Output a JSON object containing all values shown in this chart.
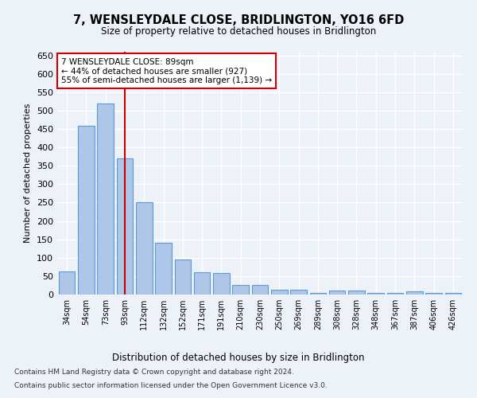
{
  "title": "7, WENSLEYDALE CLOSE, BRIDLINGTON, YO16 6FD",
  "subtitle": "Size of property relative to detached houses in Bridlington",
  "xlabel": "Distribution of detached houses by size in Bridlington",
  "ylabel": "Number of detached properties",
  "categories": [
    "34sqm",
    "54sqm",
    "73sqm",
    "93sqm",
    "112sqm",
    "132sqm",
    "152sqm",
    "171sqm",
    "191sqm",
    "210sqm",
    "230sqm",
    "250sqm",
    "269sqm",
    "289sqm",
    "308sqm",
    "328sqm",
    "348sqm",
    "367sqm",
    "387sqm",
    "406sqm",
    "426sqm"
  ],
  "values": [
    63,
    458,
    520,
    370,
    250,
    140,
    95,
    60,
    58,
    25,
    25,
    13,
    13,
    5,
    10,
    10,
    4,
    5,
    8,
    4,
    4
  ],
  "bar_color": "#aec6e8",
  "bar_edge_color": "#5b9bd5",
  "bar_edge_width": 0.8,
  "vline_x_index": 3,
  "vline_color": "#cc0000",
  "annotation_text": "7 WENSLEYDALE CLOSE: 89sqm\n← 44% of detached houses are smaller (927)\n55% of semi-detached houses are larger (1,139) →",
  "annotation_box_color": "#ffffff",
  "annotation_box_edge": "#cc0000",
  "ylim": [
    0,
    660
  ],
  "yticks": [
    0,
    50,
    100,
    150,
    200,
    250,
    300,
    350,
    400,
    450,
    500,
    550,
    600,
    650
  ],
  "footnote1": "Contains HM Land Registry data © Crown copyright and database right 2024.",
  "footnote2": "Contains public sector information licensed under the Open Government Licence v3.0.",
  "bg_color": "#edf2f9",
  "grid_color": "#ffffff",
  "title_fontsize": 10.5,
  "subtitle_fontsize": 8.5
}
